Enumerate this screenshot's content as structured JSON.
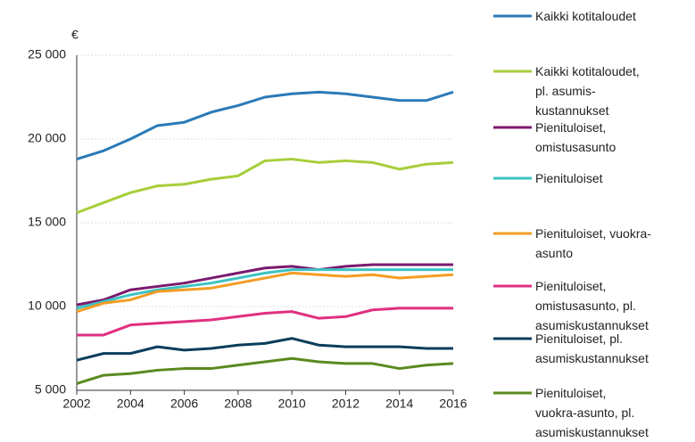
{
  "chart_data": {
    "type": "line",
    "ylabel": "€",
    "x": [
      2002,
      2003,
      2004,
      2005,
      2006,
      2007,
      2008,
      2009,
      2010,
      2011,
      2012,
      2013,
      2014,
      2015,
      2016
    ],
    "xlim": [
      2002,
      2016
    ],
    "xticks": [
      2002,
      2004,
      2006,
      2008,
      2010,
      2012,
      2014,
      2016
    ],
    "ylim": [
      5000,
      25000
    ],
    "yticks": [
      {
        "value": 5000,
        "label": "5 000"
      },
      {
        "value": 10000,
        "label": "10 000"
      },
      {
        "value": 15000,
        "label": "15 000"
      },
      {
        "value": 20000,
        "label": "20 000"
      },
      {
        "value": 25000,
        "label": "25 000"
      }
    ],
    "grid": true,
    "legend": "right",
    "series": [
      {
        "name": "Kaikki kotitaloudet",
        "color": "#2a7ab8",
        "values": [
          18800,
          19300,
          20000,
          20800,
          21000,
          21600,
          22000,
          22500,
          22700,
          22800,
          22700,
          22500,
          22300,
          22300,
          22800
        ]
      },
      {
        "name": "Kaikki kotitaloudet,\npl. asumis-\nkustannukset",
        "color": "#a6ce39",
        "values": [
          15600,
          16200,
          16800,
          17200,
          17300,
          17600,
          17800,
          18700,
          18800,
          18600,
          18700,
          18600,
          18200,
          18500,
          18600
        ]
      },
      {
        "name": "Pienituloiset,\nomistusasunto",
        "color": "#7b1a6e",
        "values": [
          10100,
          10400,
          11000,
          11200,
          11400,
          11700,
          12000,
          12300,
          12400,
          12200,
          12400,
          12500,
          12500,
          12500,
          12500
        ]
      },
      {
        "name": "Pienituloiset",
        "color": "#3cc3c3",
        "values": [
          9900,
          10300,
          10700,
          11000,
          11200,
          11400,
          11700,
          12000,
          12200,
          12200,
          12200,
          12200,
          12200,
          12200,
          12200
        ]
      },
      {
        "name": "Pienituloiset, vuokra-\nasunto",
        "color": "#f39c24",
        "values": [
          9700,
          10200,
          10400,
          10900,
          11000,
          11100,
          11400,
          11700,
          12000,
          11900,
          11800,
          11900,
          11700,
          11800,
          11900
        ]
      },
      {
        "name": "Pienituloiset,\nomistusasunto, pl.\nasumiskustannukset",
        "color": "#e0307f",
        "values": [
          8300,
          8300,
          8900,
          9000,
          9100,
          9200,
          9400,
          9600,
          9700,
          9300,
          9400,
          9800,
          9900,
          9900,
          9900
        ]
      },
      {
        "name": "Pienituloiset, pl.\nasumiskustannukset",
        "color": "#0b3d5c",
        "values": [
          6800,
          7200,
          7200,
          7600,
          7400,
          7500,
          7700,
          7800,
          8100,
          7700,
          7600,
          7600,
          7600,
          7500,
          7500
        ]
      },
      {
        "name": "Pienituloiset,\nvuokra-asunto, pl.\nasumiskustannukset",
        "color": "#5a8a1e",
        "values": [
          5400,
          5900,
          6000,
          6200,
          6300,
          6300,
          6500,
          6700,
          6900,
          6700,
          6600,
          6600,
          6300,
          6500,
          6600
        ]
      }
    ]
  }
}
